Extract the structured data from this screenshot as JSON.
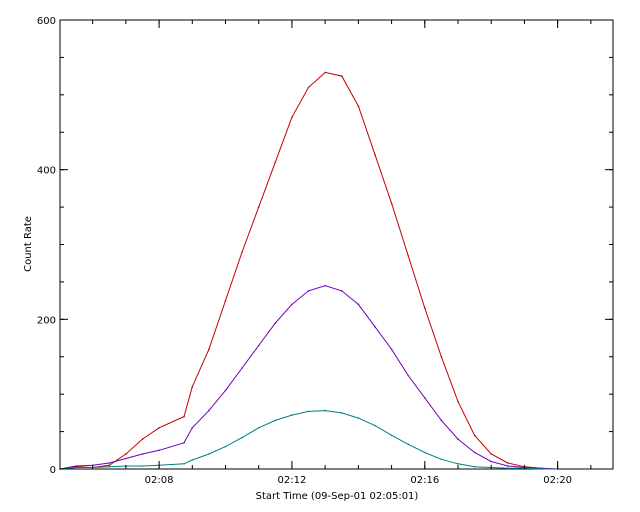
{
  "chart_data": {
    "type": "line",
    "title": "",
    "xlabel": "Start Time (09-Sep-01 02:05:01)",
    "ylabel": "Count Rate",
    "x_unit": "minutes",
    "xlim": [
      "02:05:01",
      "02:21:40"
    ],
    "ylim": [
      0,
      600
    ],
    "x_ticks": [
      "02:08",
      "02:12",
      "02:16",
      "02:20"
    ],
    "y_ticks": [
      "0",
      "200",
      "400",
      "600"
    ],
    "grid": false,
    "legend": "none",
    "series": [
      {
        "color": "#c00000",
        "x": [
          "02:05:01",
          "02:05:30",
          "02:06:00",
          "02:06:30",
          "02:07:00",
          "02:07:30",
          "02:08:00",
          "02:08:45",
          "02:09:00",
          "02:09:30",
          "02:10:00",
          "02:10:30",
          "02:11:00",
          "02:11:30",
          "02:12:00",
          "02:12:30",
          "02:13:00",
          "02:13:30",
          "02:14:00",
          "02:14:30",
          "02:15:00",
          "02:15:30",
          "02:16:00",
          "02:16:30",
          "02:17:00",
          "02:17:30",
          "02:18:00",
          "02:18:30",
          "02:19:00",
          "02:19:30",
          "02:20:00"
        ],
        "y": [
          0,
          3,
          2,
          5,
          20,
          40,
          55,
          70,
          110,
          160,
          225,
          290,
          350,
          410,
          470,
          510,
          530,
          525,
          485,
          420,
          355,
          285,
          215,
          150,
          90,
          45,
          20,
          8,
          3,
          1,
          0
        ]
      },
      {
        "color": "#7000c0",
        "x": [
          "02:05:01",
          "02:05:30",
          "02:06:00",
          "02:06:30",
          "02:07:00",
          "02:07:30",
          "02:08:00",
          "02:08:45",
          "02:09:00",
          "02:09:30",
          "02:10:00",
          "02:10:30",
          "02:11:00",
          "02:11:30",
          "02:12:00",
          "02:12:30",
          "02:13:00",
          "02:13:30",
          "02:14:00",
          "02:14:30",
          "02:15:00",
          "02:15:30",
          "02:16:00",
          "02:16:30",
          "02:17:00",
          "02:17:30",
          "02:18:00",
          "02:18:30",
          "02:19:00",
          "02:19:30",
          "02:20:00"
        ],
        "y": [
          0,
          4,
          5,
          8,
          14,
          20,
          25,
          35,
          55,
          78,
          105,
          135,
          165,
          195,
          220,
          238,
          245,
          238,
          220,
          190,
          160,
          125,
          95,
          65,
          40,
          22,
          10,
          4,
          2,
          1,
          0
        ]
      },
      {
        "color": "#008080",
        "x": [
          "02:05:01",
          "02:05:30",
          "02:06:00",
          "02:06:30",
          "02:07:00",
          "02:07:30",
          "02:08:00",
          "02:08:45",
          "02:09:00",
          "02:09:30",
          "02:10:00",
          "02:10:30",
          "02:11:00",
          "02:11:30",
          "02:12:00",
          "02:12:30",
          "02:13:00",
          "02:13:30",
          "02:14:00",
          "02:14:30",
          "02:15:00",
          "02:15:30",
          "02:16:00",
          "02:16:30",
          "02:17:00",
          "02:17:30",
          "02:18:00",
          "02:18:30",
          "02:19:00",
          "02:19:30",
          "02:20:00"
        ],
        "y": [
          0,
          2,
          2,
          3,
          4,
          4,
          5,
          7,
          12,
          20,
          30,
          42,
          55,
          65,
          72,
          77,
          78,
          75,
          68,
          58,
          45,
          33,
          22,
          13,
          7,
          3,
          2,
          1,
          1,
          0,
          0
        ]
      }
    ]
  }
}
